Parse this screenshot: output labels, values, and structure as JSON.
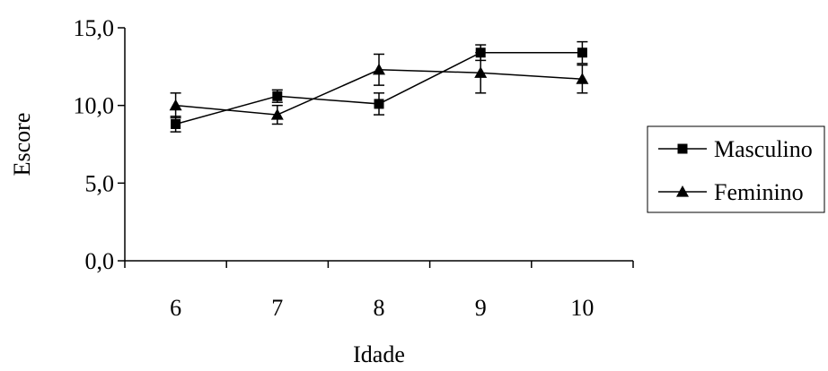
{
  "chart_data": {
    "type": "line",
    "title": "",
    "xlabel": "Idade",
    "ylabel": "Escore",
    "categories": [
      "6",
      "7",
      "8",
      "9",
      "10"
    ],
    "ylim": [
      0,
      15
    ],
    "yticks": [
      0,
      5,
      10,
      15
    ],
    "ytick_labels": [
      "0,0",
      "5,0",
      "10,0",
      "15,0"
    ],
    "grid": false,
    "legend_position": "right",
    "series": [
      {
        "name": "Masculino",
        "marker": "square",
        "values": [
          8.8,
          10.6,
          10.1,
          13.4,
          13.4
        ],
        "error": [
          0.5,
          0.4,
          0.7,
          0.5,
          0.7
        ]
      },
      {
        "name": "Feminino",
        "marker": "triangle",
        "values": [
          10.0,
          9.4,
          12.3,
          12.1,
          11.7
        ],
        "error": [
          0.8,
          0.6,
          1.0,
          1.3,
          0.9
        ]
      }
    ],
    "color": "#000000"
  }
}
